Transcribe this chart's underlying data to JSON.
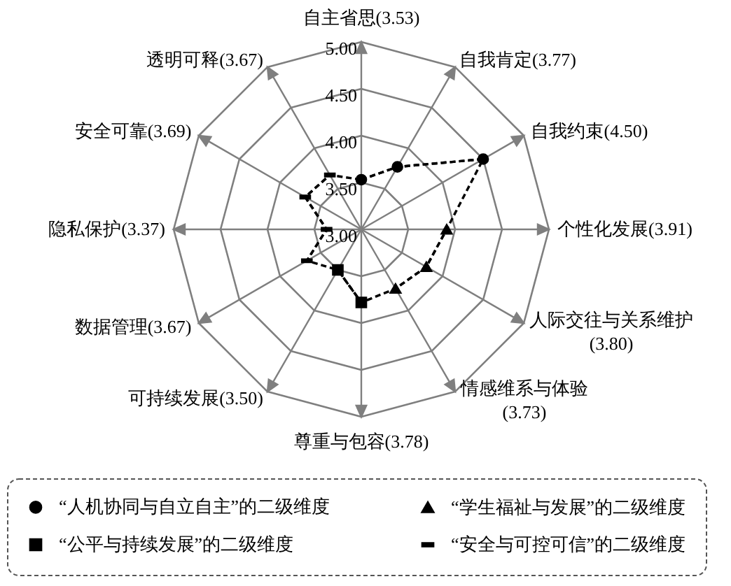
{
  "chart_data": {
    "type": "radar",
    "categories": [
      "自主省思(3.53)",
      "自我肯定(3.77)",
      "自我约束(4.50)",
      "个性化发展(3.91)",
      "人际交往与关系维护(3.80)",
      "情感维系与体验(3.73)",
      "尊重与包容(3.78)",
      "可持续发展(3.50)",
      "数据管理(3.67)",
      "隐私保护(3.37)",
      "安全可靠(3.69)",
      "透明可释(3.67)"
    ],
    "ylim": [
      3,
      5
    ],
    "yticks": [
      {
        "value": 3,
        "label": "3.00"
      },
      {
        "value": 3.5,
        "label": "3.50"
      },
      {
        "value": 4,
        "label": "4.00"
      },
      {
        "value": 4.5,
        "label": "4.50"
      },
      {
        "value": 5,
        "label": "5.00"
      }
    ],
    "grid": true,
    "legend": "bottom",
    "line_style": "dashed",
    "marker": "none",
    "series": [
      {
        "color": "#000000",
        "values": [
          3.53,
          3.77,
          4.5,
          3.91,
          3.8,
          3.73,
          3.78,
          3.5,
          3.67,
          3.37,
          3.69,
          3.67
        ]
      },
      {
        "name": "“人机协同与自立自主”的二级维度",
        "color": "#000000",
        "marker": "circle",
        "values": [
          3.53,
          3.77,
          4.5,
          null,
          null,
          null,
          null,
          null,
          null,
          null,
          null,
          null
        ]
      },
      {
        "name": "“学生福祉与发展”的二级维度",
        "color": "#000000",
        "marker": "triangle",
        "values": [
          null,
          null,
          null,
          3.91,
          3.8,
          3.73,
          null,
          null,
          null,
          null,
          null,
          null
        ]
      },
      {
        "name": "“公平与持续发展”的二级维度",
        "color": "#000000",
        "marker": "square",
        "values": [
          null,
          null,
          null,
          null,
          null,
          null,
          3.78,
          3.5,
          null,
          null,
          null,
          null
        ]
      },
      {
        "name": "“安全与可控可信”的二级维度",
        "color": "#000000",
        "marker": "dash",
        "values": [
          null,
          null,
          null,
          null,
          null,
          null,
          null,
          null,
          3.67,
          3.37,
          3.69,
          3.67
        ]
      }
    ]
  }
}
